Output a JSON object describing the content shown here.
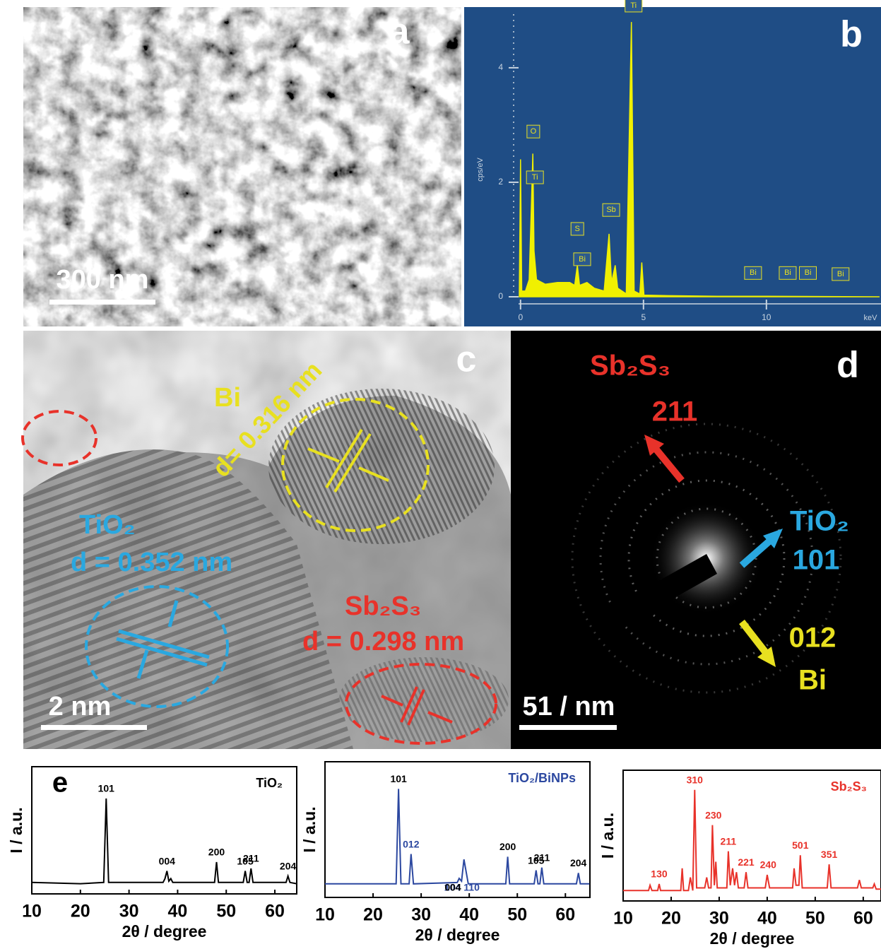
{
  "panels": {
    "a": {
      "label": "a",
      "scale_bar": "300 nm"
    },
    "b": {
      "label": "b"
    },
    "c": {
      "label": "c",
      "bi": "Bi",
      "bi_d": "d= 0.316 nm",
      "tio2": "TiO₂",
      "tio2_d": "d = 0.352 nm",
      "sb2s3": "Sb₂S₃",
      "sb2s3_d": "d = 0.298 nm",
      "scale_bar": "2 nm"
    },
    "d": {
      "label": "d",
      "sb2s3": "Sb₂S₃",
      "sb2s3_hkl": "211",
      "tio2": "TiO₂",
      "tio2_hkl": "101",
      "bi_hkl": "012",
      "bi": "Bi",
      "scale_bar": "51 / nm"
    },
    "e": {
      "label": "e"
    }
  },
  "chart_data": [
    {
      "type": "eds",
      "xlabel": "keV",
      "ylabel": "cps/eV",
      "color": "#f0f000",
      "xlim": [
        -0.08,
        14.66
      ],
      "ylim": [
        0,
        5.06
      ],
      "xticks": [
        0,
        5,
        10
      ],
      "yticks": [
        0,
        2,
        4
      ],
      "x": [
        -0.05,
        0.0,
        0.05,
        0.2,
        0.35,
        0.45,
        0.5,
        0.55,
        0.65,
        1.0,
        1.5,
        2.0,
        2.2,
        2.31,
        2.4,
        2.7,
        3.0,
        3.4,
        3.6,
        3.7,
        3.85,
        3.95,
        4.3,
        4.51,
        4.62,
        4.85,
        4.93,
        5.02,
        6,
        8,
        10,
        14.6
      ],
      "values": [
        0,
        2.4,
        0.1,
        0.1,
        0.3,
        1.7,
        2.5,
        0.8,
        0.3,
        0.22,
        0.25,
        0.25,
        0.2,
        0.55,
        0.2,
        0.25,
        0.15,
        0.1,
        1.1,
        0.25,
        0.55,
        0.15,
        0.05,
        4.8,
        0.1,
        0.05,
        0.6,
        0.03,
        0.02,
        0.01,
        0.01,
        0
      ],
      "annotations": [
        {
          "text": "Ti",
          "x": 4.51,
          "y": 4.95
        },
        {
          "text": "O",
          "x": 0.52,
          "y": 2.75
        },
        {
          "text": "Ti",
          "x": 0.5,
          "y": 1.95
        },
        {
          "text": "S",
          "x": 2.31,
          "y": 1.05
        },
        {
          "text": "Bi",
          "x": 2.42,
          "y": 0.52
        },
        {
          "text": "Sb",
          "x": 3.6,
          "y": 1.38
        },
        {
          "text": "Bi",
          "x": 9.37,
          "y": 0.28
        },
        {
          "text": "Bi",
          "x": 10.78,
          "y": 0.28
        },
        {
          "text": "Bi",
          "x": 11.6,
          "y": 0.28
        },
        {
          "text": "Bi",
          "x": 12.93,
          "y": 0.26
        }
      ]
    },
    {
      "type": "xrd",
      "title": "TiO₂",
      "title_color": "#000000",
      "color": "#000000",
      "label_color": "#000000",
      "xlabel": "2θ / degree",
      "ylabel": "I / a.u.",
      "xlim": [
        10,
        64.5
      ],
      "ylim": [
        0,
        100
      ],
      "xticks": [
        10,
        20,
        30,
        40,
        50,
        60
      ],
      "x": [
        10,
        20,
        24.8,
        25.3,
        25.8,
        37,
        37.4,
        37.8,
        38.2,
        38.6,
        39,
        47.6,
        48.0,
        48.4,
        53.5,
        53.9,
        54.3,
        54.7,
        55.1,
        55.5,
        62.3,
        62.7,
        63.1,
        64.5
      ],
      "values": [
        9,
        8,
        9,
        75,
        9,
        9,
        12,
        18,
        10,
        12,
        9,
        9,
        25,
        9,
        9,
        18,
        9,
        9,
        20,
        9,
        9,
        14,
        9,
        8
      ],
      "annotations": [
        {
          "text": "101",
          "x": 25.3
        },
        {
          "text": "004",
          "x": 37.8
        },
        {
          "text": "200",
          "x": 48.0
        },
        {
          "text": "105",
          "x": 53.9
        },
        {
          "text": "211",
          "x": 55.1
        },
        {
          "text": "204",
          "x": 62.7
        }
      ]
    },
    {
      "type": "xrd",
      "title": "TiO₂/BiNPs",
      "title_color": "#2c48a0",
      "color": "#2c48a0",
      "label_color": "#000000",
      "xlabel": "2θ / degree",
      "ylabel": "I / a.u.",
      "xlim": [
        10,
        65.1
      ],
      "ylim": [
        0,
        100
      ],
      "xticks": [
        10,
        20,
        30,
        40,
        50,
        60
      ],
      "x": [
        10,
        24.8,
        25.3,
        25.8,
        27.5,
        27.9,
        28.4,
        37.5,
        37.9,
        38.4,
        38.9,
        39.4,
        39.8,
        47.6,
        48.0,
        48.4,
        53.5,
        53.9,
        54.3,
        54.7,
        55.1,
        55.5,
        62.3,
        62.7,
        63.1,
        65
      ],
      "values": [
        10,
        10,
        80,
        10,
        10,
        32,
        10,
        11,
        14,
        12,
        28,
        18,
        10,
        10,
        30,
        10,
        10,
        20,
        10,
        10,
        22,
        10,
        10,
        18,
        10,
        10
      ],
      "annotations": [
        {
          "text": "101",
          "x": 25.3
        },
        {
          "text": "012",
          "x": 27.9,
          "color": "#2c48a0"
        },
        {
          "text": "104",
          "x": 36.5,
          "color": "#2c48a0"
        },
        {
          "text": "004",
          "x": 36.6
        },
        {
          "text": "110",
          "x": 40.5,
          "color": "#2c48a0"
        },
        {
          "text": "200",
          "x": 48.0
        },
        {
          "text": "105",
          "x": 53.9
        },
        {
          "text": "211",
          "x": 55.1
        },
        {
          "text": "204",
          "x": 62.7
        }
      ]
    },
    {
      "type": "xrd",
      "title": "Sb₂S₃",
      "title_color": "#e8322a",
      "color": "#e8322a",
      "label_color": "#e8322a",
      "xlabel": "2θ / degree",
      "ylabel": "I / a.u.",
      "xlim": [
        10,
        63.7
      ],
      "ylim": [
        0,
        100
      ],
      "xticks": [
        10,
        20,
        30,
        40,
        50,
        60
      ],
      "x": [
        10,
        15.3,
        15.6,
        16,
        17.2,
        17.5,
        17.8,
        22,
        22.3,
        22.6,
        23.6,
        24,
        24.5,
        24.9,
        25.3,
        27,
        27.4,
        27.8,
        28.3,
        28.6,
        29,
        29.3,
        29.6,
        31.6,
        31.9,
        32.3,
        32.8,
        33.2,
        33.6,
        34,
        35.2,
        35.6,
        36,
        39.6,
        40,
        40.5,
        45.3,
        45.6,
        46,
        46.6,
        46.9,
        47.3,
        52.5,
        52.9,
        53.3,
        58.8,
        59.2,
        59.6,
        62,
        62.3,
        62.7,
        63.7
      ],
      "values": [
        8,
        8,
        12,
        8,
        8,
        13,
        8,
        8,
        25,
        8,
        8,
        18,
        8,
        85,
        10,
        10,
        18,
        10,
        10,
        58,
        12,
        30,
        10,
        10,
        38,
        12,
        25,
        12,
        22,
        10,
        10,
        22,
        10,
        10,
        20,
        10,
        10,
        25,
        12,
        12,
        35,
        10,
        10,
        28,
        10,
        10,
        16,
        10,
        10,
        13,
        9,
        9
      ],
      "annotations": [
        {
          "text": "130",
          "x": 17.5
        },
        {
          "text": "310",
          "x": 24.9
        },
        {
          "text": "230",
          "x": 28.8
        },
        {
          "text": "211",
          "x": 31.9
        },
        {
          "text": "221",
          "x": 35.6
        },
        {
          "text": "240",
          "x": 40.2
        },
        {
          "text": "501",
          "x": 46.9
        },
        {
          "text": "351",
          "x": 52.9
        }
      ]
    }
  ]
}
